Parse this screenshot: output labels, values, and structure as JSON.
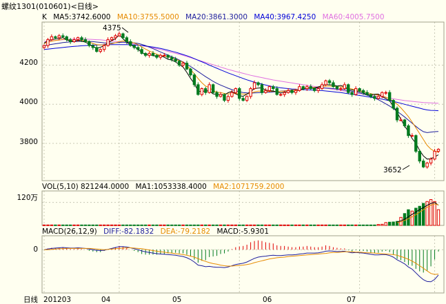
{
  "header": {
    "title": "螺纹1301(010601)<日线>"
  },
  "colors": {
    "background": "#fffff0",
    "up": "#e00000",
    "down": "#007a1e",
    "ma5": "#000000",
    "ma10": "#e68a00",
    "ma20": "#1c1c9c",
    "ma40": "#0000d8",
    "ma60": "#e070e0",
    "vol_ma1": "#000000",
    "vol_ma2": "#e68a00",
    "diff": "#1c1c9c",
    "dea": "#e68a00",
    "grid": "#c8c8b4"
  },
  "price_panel": {
    "legend": {
      "k_label": "K",
      "ma5": "MA5:3742.6000",
      "ma10": "MA10:3755.5000",
      "ma20": "MA20:3861.3000",
      "ma40": "MA40:3967.4250",
      "ma60": "MA60:4005.7500"
    },
    "y_ticks": [
      "4200",
      "4000",
      "3800"
    ],
    "annotations": {
      "high": "4375",
      "low": "3652"
    }
  },
  "volume_panel": {
    "legend": {
      "vol": "VOL(5,10)  821244.0000",
      "ma1": "MA1:1053338.4000",
      "ma2": "MA2:1071759.2000"
    },
    "y_tick": "120万"
  },
  "macd_panel": {
    "legend": {
      "macd_params": "MACD(26,12,9)",
      "diff": "DIFF:-82.1832",
      "dea": "DEA:-79.2182",
      "macd": "MACD:-5.9301"
    },
    "y_tick": "0"
  },
  "x_axis": {
    "period_label": "日线",
    "ticks": [
      "201203",
      "04",
      "05",
      "06",
      "07"
    ]
  },
  "chart_data": {
    "type": "candlestick",
    "y_range": [
      3610,
      4420
    ],
    "closes": [
      4300,
      4330,
      4345,
      4340,
      4350,
      4345,
      4330,
      4320,
      4330,
      4340,
      4330,
      4320,
      4300,
      4290,
      4270,
      4280,
      4300,
      4330,
      4340,
      4350,
      4360,
      4340,
      4320,
      4300,
      4290,
      4280,
      4260,
      4250,
      4260,
      4250,
      4240,
      4250,
      4250,
      4240,
      4230,
      4220,
      4200,
      4210,
      4180,
      4150,
      4100,
      4050,
      4080,
      4060,
      4100,
      4060,
      4040,
      4050,
      4020,
      4040,
      4060,
      4080,
      4030,
      4020,
      4040,
      4080,
      4110,
      4100,
      4060,
      4070,
      4090,
      4080,
      4050,
      4050,
      4060,
      4070,
      4060,
      4070,
      4090,
      4080,
      4090,
      4080,
      4070,
      4080,
      4100,
      4120,
      4110,
      4090,
      4080,
      4080,
      4100,
      4060,
      4050,
      4080,
      4070,
      4060,
      4050,
      4040,
      4030,
      4040,
      4060,
      4060,
      4020,
      3980,
      3920,
      3920,
      3890,
      3840,
      3840,
      3760,
      3710,
      3680,
      3700,
      3720,
      3760,
      3770
    ],
    "ma5": [
      4312,
      4326,
      4330,
      4334,
      4335,
      4341,
      4329,
      4322,
      4321,
      4328,
      4322,
      4317,
      4307,
      4295,
      4287,
      4291,
      4300,
      4315,
      4325,
      4335,
      4355,
      4335,
      4317,
      4305,
      4294,
      4281,
      4265,
      4253,
      4253,
      4249,
      4245,
      4249,
      4240,
      4230,
      4226,
      4216,
      4203,
      4190,
      4163,
      4132,
      4106,
      4068,
      4064,
      4070,
      4067,
      4053,
      4050,
      4050,
      4047,
      4059,
      4066,
      4054,
      4043,
      4041,
      4052,
      4065,
      4080,
      4083,
      4084,
      4072,
      4070,
      4068,
      4062,
      4058,
      4063,
      4063,
      4065,
      4065,
      4073,
      4078,
      4084,
      4082,
      4083,
      4089,
      4095,
      4101,
      4099,
      4099,
      4093,
      4096,
      4089,
      4074,
      4074,
      4068,
      4065,
      4058,
      4048,
      4048,
      4051,
      4052,
      4039,
      4029,
      4017,
      3989,
      3958,
      3924,
      3889,
      3860,
      3825,
      3801,
      3764,
      3736,
      3720,
      3722,
      3731,
      3742
    ],
    "ma10": [
      4310,
      4318,
      4322,
      4326,
      4328,
      4333,
      4331,
      4327,
      4324,
      4325,
      4326,
      4324,
      4317,
      4311,
      4305,
      4303,
      4303,
      4306,
      4309,
      4314,
      4320,
      4323,
      4322,
      4319,
      4313,
      4305,
      4293,
      4282,
      4272,
      4264,
      4256,
      4249,
      4246,
      4243,
      4238,
      4230,
      4223,
      4214,
      4199,
      4178,
      4155,
      4131,
      4110,
      4093,
      4085,
      4070,
      4062,
      4060,
      4055,
      4053,
      4054,
      4055,
      4054,
      4052,
      4053,
      4057,
      4063,
      4067,
      4067,
      4066,
      4066,
      4066,
      4065,
      4066,
      4068,
      4070,
      4072,
      4074,
      4075,
      4078,
      4082,
      4084,
      4086,
      4087,
      4090,
      4093,
      4093,
      4092,
      4090,
      4089,
      4086,
      4082,
      4078,
      4073,
      4070,
      4065,
      4059,
      4054,
      4050,
      4047,
      4043,
      4036,
      4027,
      4015,
      4000,
      3982,
      3960,
      3937,
      3909,
      3880,
      3850,
      3820,
      3790,
      3771,
      3760,
      3755
    ],
    "ma20": [
      4300,
      4303,
      4306,
      4309,
      4312,
      4315,
      4317,
      4319,
      4320,
      4321,
      4322,
      4322,
      4321,
      4320,
      4318,
      4316,
      4314,
      4313,
      4313,
      4314,
      4316,
      4317,
      4317,
      4316,
      4314,
      4311,
      4306,
      4300,
      4292,
      4284,
      4276,
      4267,
      4259,
      4251,
      4243,
      4235,
      4226,
      4216,
      4205,
      4193,
      4180,
      4167,
      4154,
      4141,
      4129,
      4117,
      4107,
      4098,
      4090,
      4082,
      4075,
      4069,
      4064,
      4060,
      4058,
      4057,
      4058,
      4059,
      4060,
      4061,
      4062,
      4063,
      4065,
      4067,
      4069,
      4071,
      4073,
      4075,
      4077,
      4079,
      4081,
      4082,
      4083,
      4084,
      4084,
      4083,
      4082,
      4080,
      4078,
      4076,
      4073,
      4070,
      4067,
      4063,
      4058,
      4053,
      4047,
      4040,
      4032,
      4023,
      4013,
      4002,
      3991,
      3978,
      3964,
      3950,
      3935,
      3919,
      3903,
      3887,
      3872,
      3860,
      3855,
      3858,
      3860,
      3861
    ],
    "ma40": [
      4280,
      4282,
      4284,
      4286,
      4288,
      4290,
      4292,
      4294,
      4296,
      4297,
      4299,
      4300,
      4301,
      4302,
      4303,
      4303,
      4304,
      4304,
      4305,
      4305,
      4305,
      4305,
      4305,
      4304,
      4303,
      4302,
      4300,
      4298,
      4295,
      4292,
      4289,
      4285,
      4281,
      4276,
      4271,
      4266,
      4260,
      4254,
      4248,
      4241,
      4233,
      4225,
      4217,
      4209,
      4200,
      4192,
      4184,
      4176,
      4168,
      4160,
      4153,
      4146,
      4139,
      4132,
      4125,
      4119,
      4113,
      4108,
      4103,
      4098,
      4094,
      4090,
      4087,
      4084,
      4082,
      4080,
      4078,
      4077,
      4076,
      4075,
      4074,
      4073,
      4072,
      4071,
      4070,
      4068,
      4066,
      4064,
      4062,
      4060,
      4057,
      4054,
      4051,
      4048,
      4045,
      4042,
      4039,
      4036,
      4033,
      4030,
      4026,
      4022,
      4018,
      4014,
      4010,
      4005,
      4000,
      3995,
      3990,
      3985,
      3980,
      3975,
      3971,
      3969,
      3968,
      3967
    ],
    "ma60": [
      4320,
      4322,
      4324,
      4326,
      4328,
      4330,
      4331,
      4332,
      4333,
      4333,
      4333,
      4333,
      4332,
      4331,
      4330,
      4329,
      4327,
      4325,
      4323,
      4321,
      4319,
      4317,
      4314,
      4311,
      4308,
      4304,
      4300,
      4296,
      4292,
      4288,
      4284,
      4280,
      4275,
      4270,
      4265,
      4260,
      4255,
      4250,
      4244,
      4238,
      4232,
      4226,
      4220,
      4214,
      4208,
      4202,
      4196,
      4190,
      4184,
      4178,
      4173,
      4168,
      4163,
      4158,
      4153,
      4148,
      4144,
      4140,
      4136,
      4132,
      4128,
      4124,
      4121,
      4118,
      4115,
      4112,
      4109,
      4106,
      4103,
      4100,
      4097,
      4094,
      4091,
      4088,
      4085,
      4082,
      4079,
      4076,
      4073,
      4070,
      4067,
      4064,
      4061,
      4058,
      4055,
      4052,
      4049,
      4046,
      4043,
      4040,
      4037,
      4034,
      4031,
      4028,
      4025,
      4022,
      4019,
      4017,
      4015,
      4013,
      4011,
      4009,
      4008,
      4007,
      4006,
      4005
    ],
    "volume": {
      "y_range": [
        0,
        1800000
      ],
      "values": [
        25000,
        25000,
        25000,
        25000,
        25000,
        25000,
        25000,
        25000,
        25000,
        25000,
        25000,
        25000,
        25000,
        25000,
        25000,
        25000,
        25000,
        25000,
        25000,
        25000,
        25000,
        25000,
        25000,
        25000,
        25000,
        25000,
        25000,
        25000,
        25000,
        25000,
        25000,
        25000,
        25000,
        25000,
        25000,
        25000,
        25000,
        25000,
        25000,
        25000,
        25000,
        25000,
        25000,
        25000,
        25000,
        25000,
        25000,
        25000,
        25000,
        25000,
        25000,
        25000,
        25000,
        25000,
        25000,
        25000,
        25000,
        25000,
        25000,
        25000,
        25000,
        25000,
        25000,
        25000,
        25000,
        25000,
        25000,
        25000,
        25000,
        25000,
        25000,
        25000,
        25000,
        25000,
        25000,
        25000,
        25000,
        25000,
        25000,
        25000,
        25000,
        25000,
        25000,
        25000,
        25000,
        25000,
        25000,
        25000,
        25000,
        50000,
        60000,
        150000,
        170000,
        180000,
        210000,
        420000,
        620000,
        820000,
        750000,
        900000,
        1000000,
        1150000,
        1250000,
        1350000,
        1250000,
        821244
      ],
      "ma1": [
        null,
        null,
        null,
        null,
        null,
        null,
        null,
        null,
        null,
        null,
        null,
        null,
        null,
        null,
        null,
        null,
        null,
        null,
        null,
        null,
        null,
        null,
        null,
        null,
        null,
        null,
        null,
        null,
        null,
        null,
        null,
        null,
        null,
        null,
        null,
        null,
        null,
        null,
        null,
        null,
        null,
        null,
        null,
        null,
        null,
        null,
        null,
        null,
        null,
        null,
        null,
        null,
        null,
        null,
        null,
        null,
        null,
        null,
        null,
        null,
        null,
        null,
        null,
        null,
        null,
        null,
        null,
        null,
        null,
        null,
        null,
        null,
        null,
        null,
        null,
        null,
        null,
        null,
        null,
        null,
        null,
        null,
        null,
        null,
        null,
        null,
        null,
        null,
        null,
        null,
        null,
        null,
        null,
        null,
        180000,
        240000,
        320000,
        450000,
        580000,
        700000,
        830000,
        930000,
        1050000,
        1150000,
        1200000,
        1053338
      ],
      "ma2": [
        null,
        null,
        null,
        null,
        null,
        null,
        null,
        null,
        null,
        null,
        null,
        null,
        null,
        null,
        null,
        null,
        null,
        null,
        null,
        null,
        null,
        null,
        null,
        null,
        null,
        null,
        null,
        null,
        null,
        null,
        null,
        null,
        null,
        null,
        null,
        null,
        null,
        null,
        null,
        null,
        null,
        null,
        null,
        null,
        null,
        null,
        null,
        null,
        null,
        null,
        null,
        null,
        null,
        null,
        null,
        null,
        null,
        null,
        null,
        null,
        null,
        null,
        null,
        null,
        null,
        null,
        null,
        null,
        null,
        null,
        null,
        null,
        null,
        null,
        null,
        null,
        null,
        null,
        null,
        null,
        null,
        null,
        null,
        null,
        null,
        null,
        null,
        null,
        null,
        null,
        null,
        null,
        null,
        null,
        140000,
        190000,
        260000,
        350000,
        450000,
        560000,
        690000,
        820000,
        950000,
        1060000,
        1120000,
        1071759
      ]
    },
    "macd": {
      "y_range": [
        -140,
        45
      ],
      "diff": [
        0,
        2,
        4,
        5,
        6,
        7,
        6,
        5,
        5,
        6,
        5,
        4,
        2,
        0,
        -2,
        -3,
        -2,
        1,
        4,
        7,
        10,
        10,
        9,
        6,
        3,
        0,
        -4,
        -7,
        -9,
        -11,
        -13,
        -14,
        -15,
        -16,
        -17,
        -18,
        -20,
        -22,
        -26,
        -32,
        -40,
        -50,
        -52,
        -55,
        -54,
        -56,
        -57,
        -57,
        -58,
        -56,
        -52,
        -48,
        -46,
        -44,
        -40,
        -34,
        -28,
        -24,
        -22,
        -21,
        -19,
        -18,
        -19,
        -19,
        -18,
        -17,
        -17,
        -16,
        -14,
        -13,
        -11,
        -11,
        -11,
        -10,
        -8,
        -5,
        -4,
        -5,
        -6,
        -6,
        -5,
        -8,
        -10,
        -9,
        -10,
        -11,
        -13,
        -15,
        -17,
        -17,
        -16,
        -16,
        -19,
        -24,
        -33,
        -39,
        -46,
        -56,
        -63,
        -75,
        -87,
        -97,
        -103,
        -104,
        -96,
        -82
      ],
      "dea": [
        0,
        0,
        1,
        2,
        3,
        3,
        4,
        4,
        4,
        4,
        4,
        4,
        4,
        3,
        2,
        1,
        0,
        1,
        2,
        3,
        4,
        5,
        6,
        6,
        5,
        4,
        3,
        1,
        -1,
        -3,
        -5,
        -7,
        -8,
        -10,
        -11,
        -13,
        -14,
        -16,
        -18,
        -21,
        -24,
        -29,
        -34,
        -38,
        -42,
        -45,
        -47,
        -50,
        -52,
        -53,
        -53,
        -52,
        -51,
        -50,
        -48,
        -46,
        -42,
        -39,
        -36,
        -33,
        -30,
        -28,
        -26,
        -25,
        -24,
        -22,
        -21,
        -20,
        -19,
        -18,
        -17,
        -16,
        -15,
        -14,
        -13,
        -12,
        -10,
        -9,
        -9,
        -8,
        -7,
        -7,
        -7,
        -8,
        -8,
        -9,
        -10,
        -10,
        -11,
        -12,
        -13,
        -14,
        -15,
        -16,
        -18,
        -22,
        -26,
        -31,
        -37,
        -44,
        -52,
        -60,
        -69,
        -77,
        -80,
        -79
      ],
      "hist": [
        0,
        4,
        6,
        6,
        6,
        8,
        4,
        2,
        2,
        4,
        2,
        0,
        -4,
        -6,
        -8,
        -8,
        -4,
        0,
        4,
        8,
        12,
        10,
        6,
        0,
        -4,
        -8,
        -14,
        -16,
        -16,
        -16,
        -16,
        -14,
        -14,
        -12,
        -12,
        -10,
        -12,
        -12,
        -16,
        -22,
        -32,
        -42,
        -36,
        -34,
        -24,
        -22,
        -20,
        -14,
        -12,
        -6,
        2,
        8,
        10,
        12,
        16,
        24,
        28,
        30,
        28,
        24,
        22,
        20,
        14,
        12,
        12,
        10,
        8,
        8,
        10,
        10,
        12,
        10,
        8,
        8,
        10,
        14,
        12,
        8,
        6,
        4,
        4,
        -2,
        -6,
        -2,
        -4,
        -4,
        -6,
        -10,
        -12,
        -10,
        -6,
        -4,
        -8,
        -16,
        -30,
        -34,
        -40,
        -50,
        -52,
        -62,
        -70,
        -74,
        -68,
        -54,
        -32,
        -6
      ]
    }
  }
}
